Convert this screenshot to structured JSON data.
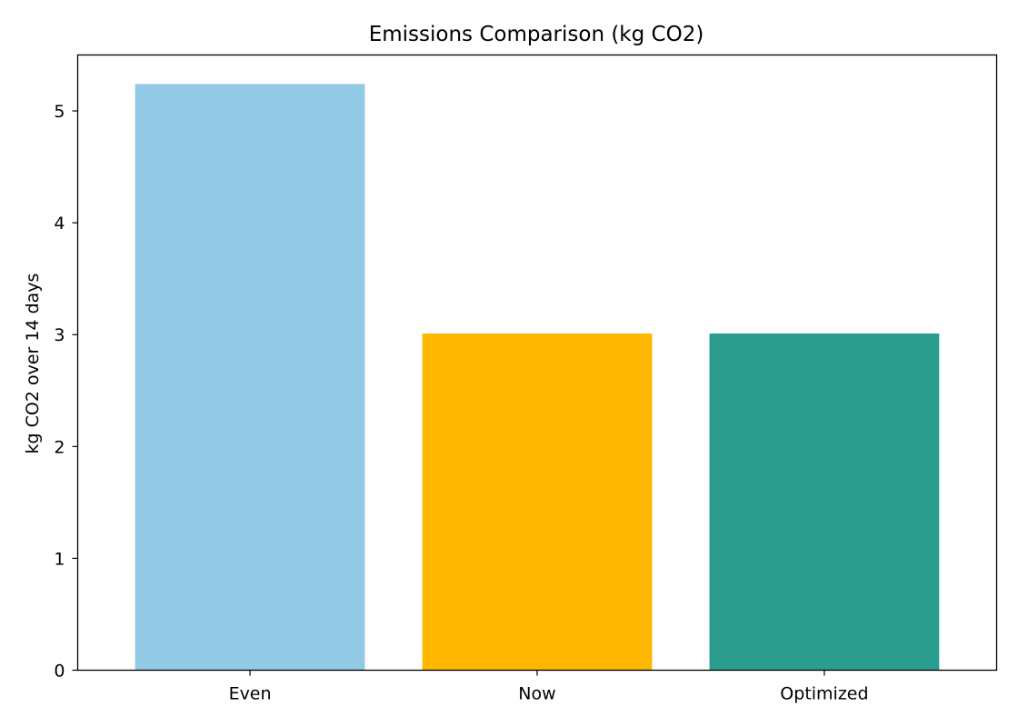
{
  "chart_data": {
    "type": "bar",
    "title": "Emissions Comparison (kg CO2)",
    "xlabel": "",
    "ylabel": "kg CO2 over 14 days",
    "categories": [
      "Even",
      "Now",
      "Optimized"
    ],
    "values": [
      5.24,
      3.01,
      3.01
    ],
    "colors": [
      "#92c9e4",
      "#ffb700",
      "#2a9d8f"
    ],
    "ylim": [
      0,
      5.5
    ],
    "yticks": [
      0,
      1,
      2,
      3,
      4,
      5
    ],
    "grid": false,
    "legend": "none"
  }
}
